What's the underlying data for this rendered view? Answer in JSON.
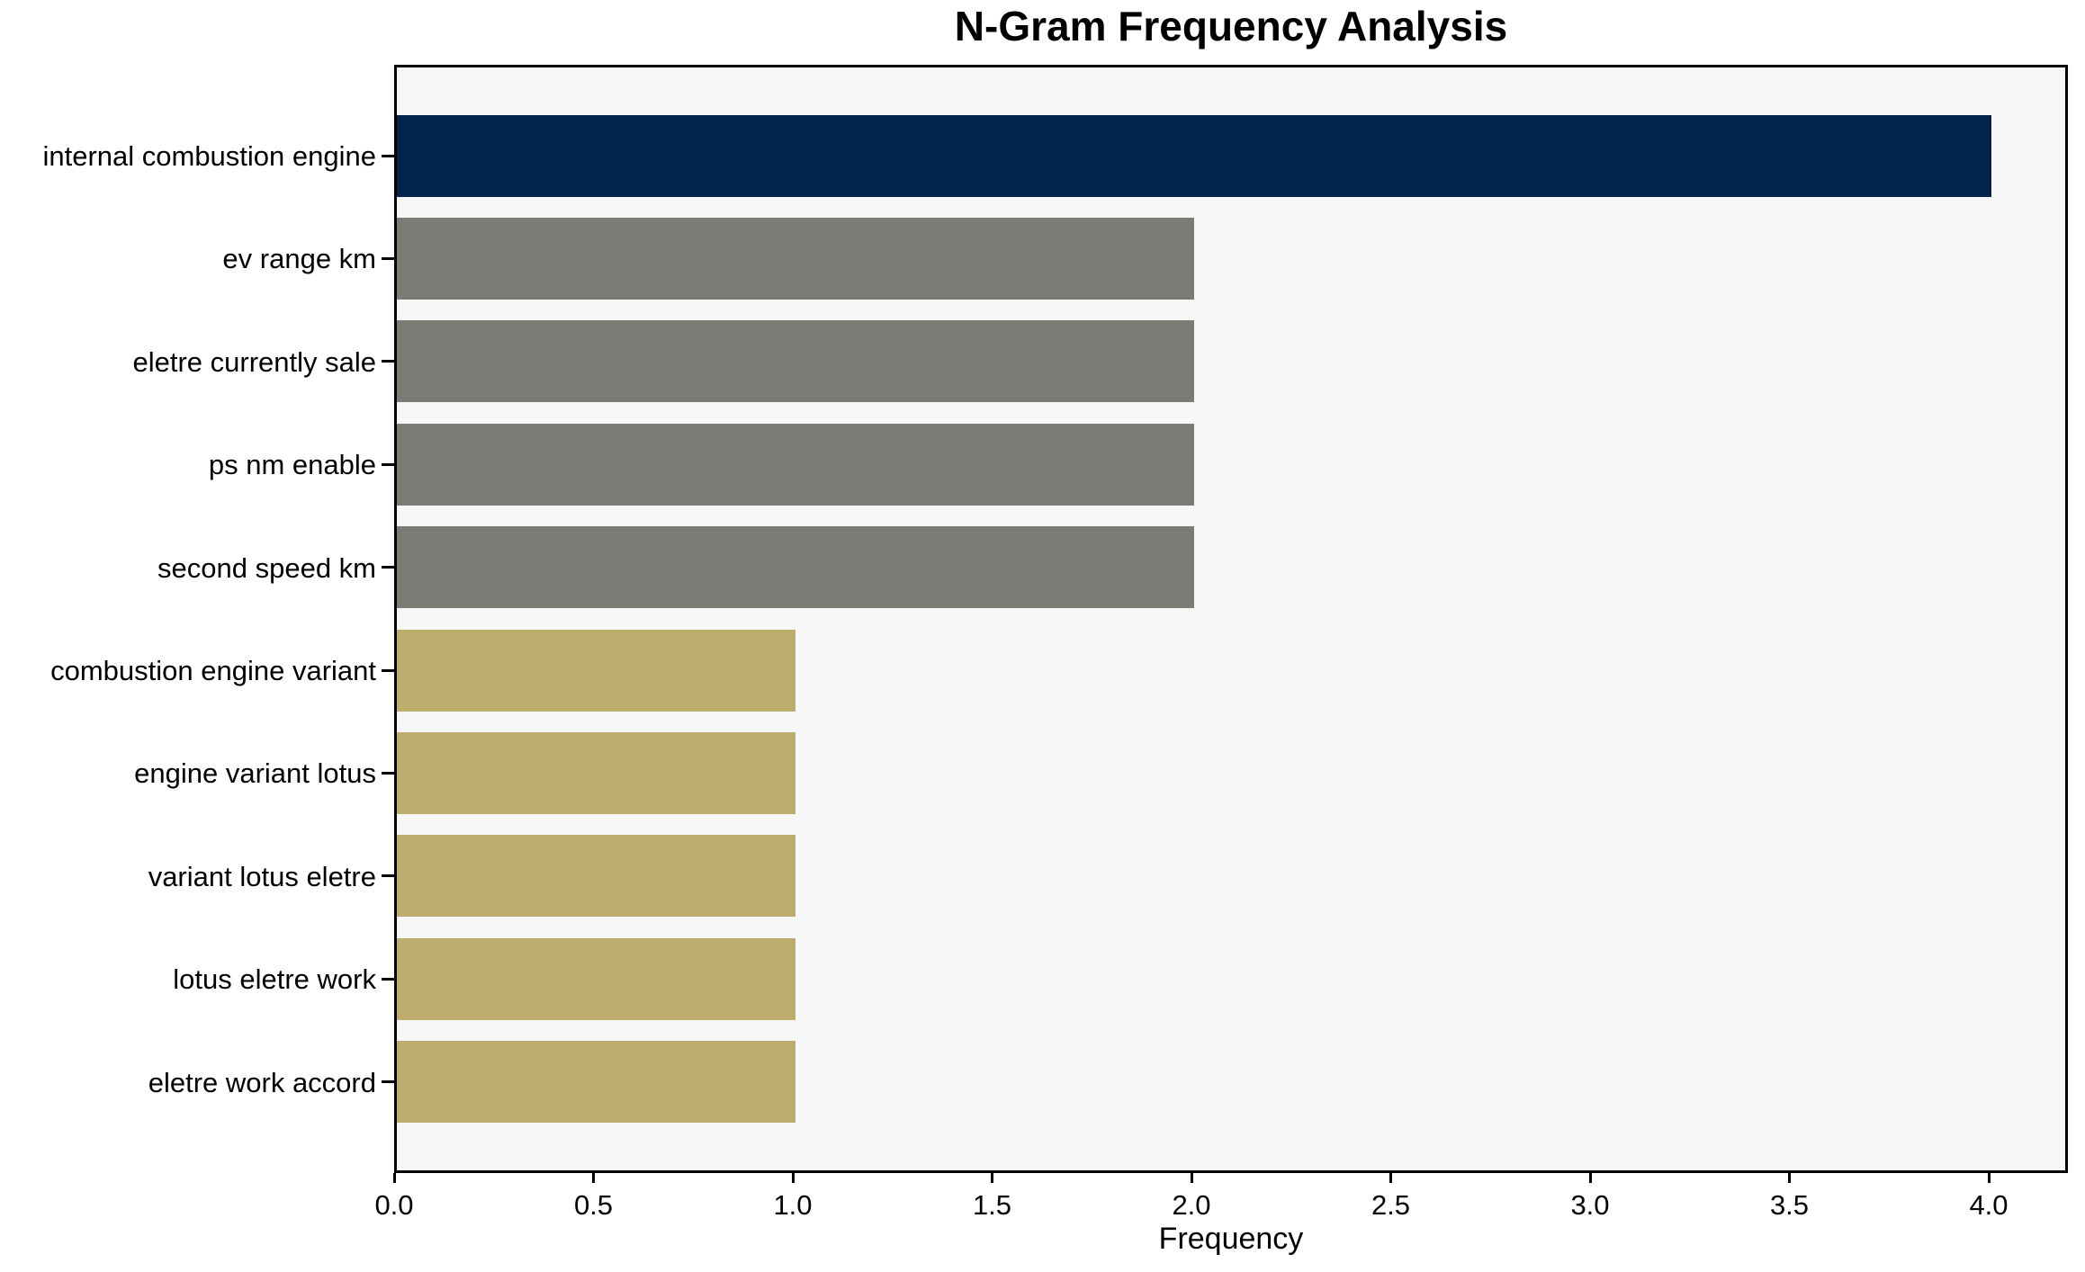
{
  "chart_data": {
    "type": "bar",
    "orientation": "horizontal",
    "title": "N-Gram Frequency Analysis",
    "xlabel": "Frequency",
    "ylabel": "",
    "categories": [
      "internal combustion engine",
      "ev range km",
      "eletre currently sale",
      "ps nm enable",
      "second speed km",
      "combustion engine variant",
      "engine variant lotus",
      "variant lotus eletre",
      "lotus eletre work",
      "eletre work accord"
    ],
    "values": [
      4,
      2,
      2,
      2,
      2,
      1,
      1,
      1,
      1,
      1
    ],
    "bar_colors": [
      "#02234c",
      "#7c7b75",
      "#7c7b75",
      "#7c7b75",
      "#7c7b75",
      "#bcad6d",
      "#bcad6d",
      "#bcad6d",
      "#bcad6d",
      "#bcad6d"
    ],
    "xticks": [
      0,
      0.5,
      1,
      1.5,
      2,
      2.5,
      3,
      3.5,
      4
    ],
    "xtick_labels": [
      "0.0",
      "0.5",
      "1.0",
      "1.5",
      "2.0",
      "2.5",
      "3.0",
      "3.5",
      "4.0"
    ],
    "xlim": [
      0,
      4.2
    ],
    "grid": false,
    "legend": null,
    "colors": {
      "plot_background": "#f7f7f7",
      "figure_background": "#ffffff",
      "spine": "#000000",
      "navy": "#02234c",
      "gray": "#7c7b75",
      "khaki": "#bcad6d"
    }
  }
}
